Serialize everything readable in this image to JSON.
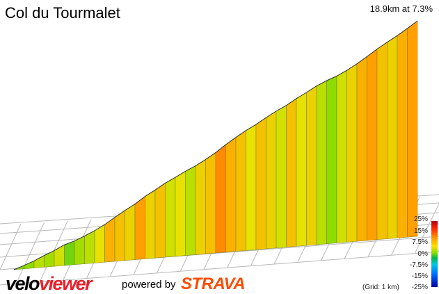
{
  "header": {
    "title": "Col du Tourmalet",
    "summary": "18.9km at 7.3%"
  },
  "legend": {
    "ticks": [
      "25%",
      "15%",
      "7.5%",
      "0%",
      "-7.5%",
      "-15%",
      "-25%"
    ],
    "grid_note": "(Grid: 1 km)"
  },
  "branding": {
    "logo_part1": "velo",
    "logo_part2": "viewer",
    "powered_by": "powered by",
    "strava": "STRAVA"
  },
  "colors": {
    "accent_red": "#e8202a",
    "strava_orange": "#fc4c02"
  },
  "chart_data": {
    "type": "area",
    "title": "Col du Tourmalet",
    "xlabel": "",
    "ylabel": "",
    "x_unit": "km",
    "distance_km": 18.9,
    "avg_gradient_pct": 7.3,
    "color_scale_pct": [
      -25,
      25
    ],
    "grid_km": 1,
    "segments_gradient_pct": [
      4.5,
      5.0,
      6.0,
      5.5,
      6.5,
      4.0,
      5.5,
      6.0,
      7.0,
      8.5,
      8.0,
      7.5,
      9.0,
      7.5,
      8.0,
      6.5,
      7.0,
      6.0,
      7.5,
      8.0,
      9.5,
      8.5,
      8.0,
      7.0,
      8.0,
      7.5,
      6.5,
      8.0,
      7.0,
      7.5,
      6.0,
      5.0,
      6.5,
      7.5,
      8.5,
      9.0,
      8.0,
      7.5,
      8.5,
      9.0
    ]
  }
}
